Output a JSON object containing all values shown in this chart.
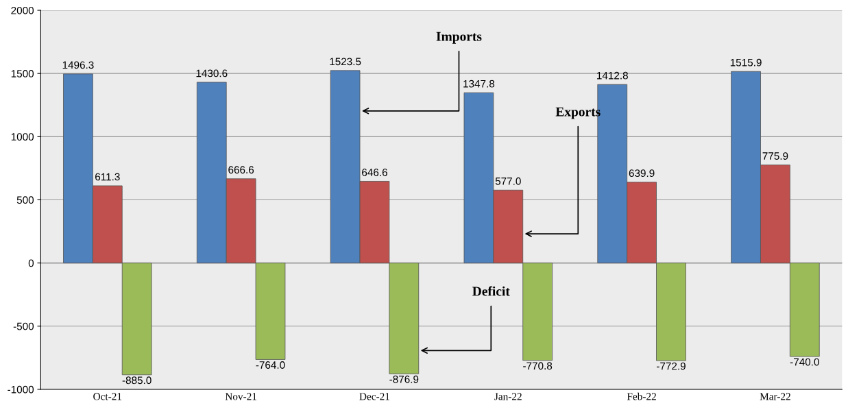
{
  "chart_data": {
    "type": "bar",
    "categories": [
      "Oct-21",
      "Nov-21",
      "Dec-21",
      "Jan-22",
      "Feb-22",
      "Mar-22"
    ],
    "series": [
      {
        "name": "Imports",
        "color": "#4f81bd",
        "values": [
          1496.3,
          1430.6,
          1523.5,
          1347.8,
          1412.8,
          1515.9
        ],
        "value_labels": [
          "1496.3",
          "1430.6",
          "1523.5",
          "1347.8",
          "1412.8",
          "1515.9"
        ]
      },
      {
        "name": "Exports",
        "color": "#c0504d",
        "values": [
          611.3,
          666.6,
          646.6,
          577.0,
          639.9,
          775.9
        ],
        "value_labels": [
          "611.3",
          "666.6",
          "646.6",
          "577.0",
          "639.9",
          "775.9"
        ]
      },
      {
        "name": "Deficit",
        "color": "#9bbb59",
        "values": [
          -885.0,
          -764.0,
          -876.9,
          -770.8,
          -772.9,
          -740.0
        ],
        "value_labels": [
          "-885.0",
          "-764.0",
          "-876.9",
          "-770.8",
          "-772.9",
          "-740.0"
        ]
      }
    ],
    "ylim": [
      -1000,
      2000
    ],
    "yticks": [
      -1000,
      -500,
      0,
      500,
      1000,
      1500,
      2000
    ],
    "grid": "y",
    "legend": false
  }
}
